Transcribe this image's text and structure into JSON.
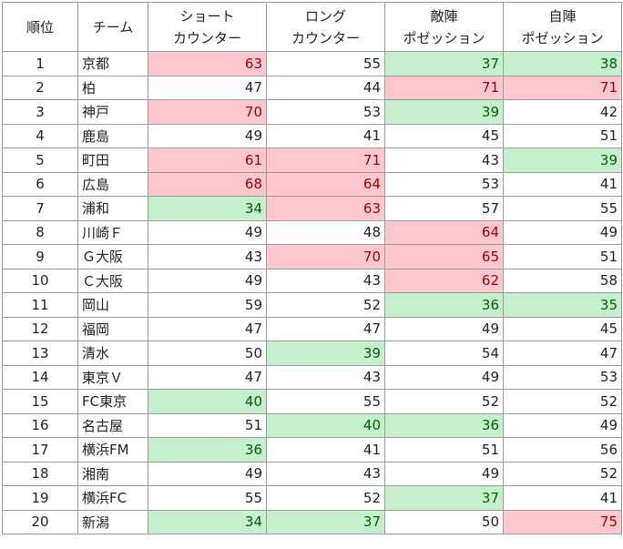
{
  "headers": [
    [
      "順位"
    ],
    [
      "チーム"
    ],
    [
      "ショート",
      "カウンター"
    ],
    [
      "ロング",
      "カウンター"
    ],
    [
      "敵陣",
      "ポゼッション"
    ],
    [
      "自陣",
      "ポゼッション"
    ]
  ],
  "rows": [
    {
      "rank": "1",
      "team": "京都",
      "values": [
        63,
        55,
        37,
        38
      ],
      "flags": [
        "hi",
        "",
        "lo",
        "lo"
      ]
    },
    {
      "rank": "2",
      "team": "柏",
      "values": [
        47,
        44,
        71,
        71
      ],
      "flags": [
        "",
        "",
        "hi",
        "hi"
      ]
    },
    {
      "rank": "3",
      "team": "神戸",
      "values": [
        70,
        53,
        39,
        42
      ],
      "flags": [
        "hi",
        "",
        "lo",
        ""
      ]
    },
    {
      "rank": "4",
      "team": "鹿島",
      "values": [
        49,
        41,
        45,
        51
      ],
      "flags": [
        "",
        "",
        "",
        ""
      ]
    },
    {
      "rank": "5",
      "team": "町田",
      "values": [
        61,
        71,
        43,
        39
      ],
      "flags": [
        "hi",
        "hi",
        "",
        "lo"
      ]
    },
    {
      "rank": "6",
      "team": "広島",
      "values": [
        68,
        64,
        53,
        41
      ],
      "flags": [
        "hi",
        "hi",
        "",
        ""
      ]
    },
    {
      "rank": "7",
      "team": "浦和",
      "values": [
        34,
        63,
        57,
        55
      ],
      "flags": [
        "lo",
        "hi",
        "",
        ""
      ]
    },
    {
      "rank": "8",
      "team": "川崎Ｆ",
      "values": [
        49,
        48,
        64,
        49
      ],
      "flags": [
        "",
        "",
        "hi",
        ""
      ]
    },
    {
      "rank": "9",
      "team": "Ｇ大阪",
      "values": [
        43,
        70,
        65,
        51
      ],
      "flags": [
        "",
        "hi",
        "hi",
        ""
      ]
    },
    {
      "rank": "10",
      "team": "Ｃ大阪",
      "values": [
        49,
        43,
        62,
        58
      ],
      "flags": [
        "",
        "",
        "hi",
        ""
      ]
    },
    {
      "rank": "11",
      "team": "岡山",
      "values": [
        59,
        52,
        36,
        35
      ],
      "flags": [
        "",
        "",
        "lo",
        "lo"
      ]
    },
    {
      "rank": "12",
      "team": "福岡",
      "values": [
        47,
        47,
        49,
        45
      ],
      "flags": [
        "",
        "",
        "",
        ""
      ]
    },
    {
      "rank": "13",
      "team": "清水",
      "values": [
        50,
        39,
        54,
        47
      ],
      "flags": [
        "",
        "lo",
        "",
        ""
      ]
    },
    {
      "rank": "14",
      "team": "東京Ｖ",
      "values": [
        47,
        43,
        49,
        53
      ],
      "flags": [
        "",
        "",
        "",
        ""
      ]
    },
    {
      "rank": "15",
      "team": "FC東京",
      "values": [
        40,
        55,
        52,
        52
      ],
      "flags": [
        "lo",
        "",
        "",
        ""
      ]
    },
    {
      "rank": "16",
      "team": "名古屋",
      "values": [
        51,
        40,
        36,
        49
      ],
      "flags": [
        "",
        "lo",
        "lo",
        ""
      ]
    },
    {
      "rank": "17",
      "team": "横浜FM",
      "values": [
        36,
        41,
        51,
        56
      ],
      "flags": [
        "lo",
        "",
        "",
        ""
      ]
    },
    {
      "rank": "18",
      "team": "湘南",
      "values": [
        49,
        43,
        49,
        52
      ],
      "flags": [
        "",
        "",
        "",
        ""
      ]
    },
    {
      "rank": "19",
      "team": "横浜FC",
      "values": [
        55,
        52,
        37,
        41
      ],
      "flags": [
        "",
        "",
        "lo",
        ""
      ]
    },
    {
      "rank": "20",
      "team": "新潟",
      "values": [
        34,
        37,
        50,
        75
      ],
      "flags": [
        "lo",
        "lo",
        "",
        "hi"
      ]
    }
  ]
}
